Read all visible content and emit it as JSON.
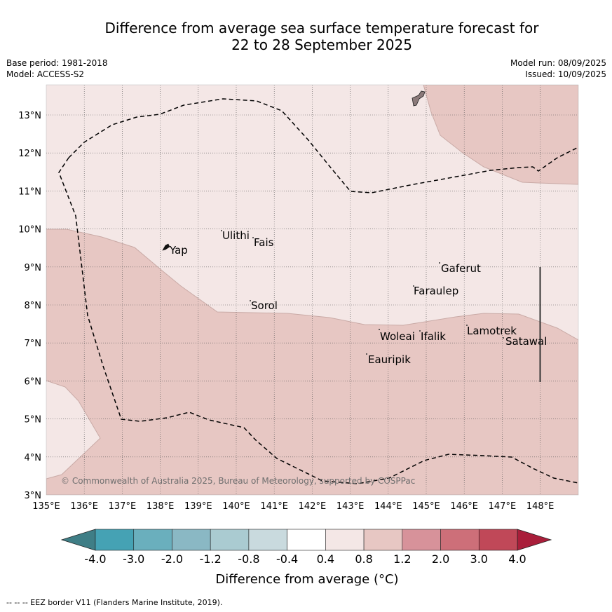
{
  "header": {
    "title_line1": "Difference from average sea surface temperature forecast for",
    "title_line2": "22 to 28 September 2025",
    "base_period": "Base period: 1981-2018",
    "model": "Model: ACCESS-S2",
    "model_run": "Model run: 08/09/2025",
    "issued": "Issued: 10/09/2025"
  },
  "map": {
    "lat_labels": [
      "3°N",
      "4°N",
      "5°N",
      "6°N",
      "7°N",
      "8°N",
      "9°N",
      "10°N",
      "11°N",
      "12°N",
      "13°N"
    ],
    "lon_labels": [
      "135°E",
      "136°E",
      "137°E",
      "138°E",
      "139°E",
      "140°E",
      "141°E",
      "142°E",
      "143°E",
      "144°E",
      "145°E",
      "146°E",
      "147°E",
      "148°E"
    ],
    "places": [
      "Yap",
      "Ulithi",
      "Fais",
      "Sorol",
      "Gaferut",
      "Faraulep",
      "Woleai",
      "Ifalik",
      "Lamotrek",
      "Satawal",
      "Eauripik"
    ],
    "copyright": "© Commonwealth of Australia 2025, Bureau of Meteorology, supported by COSPPac",
    "category_colors": {
      "0.4_to_0.8": "#f4e7e6",
      "0.8_to_1.2": "#e7c7c3"
    }
  },
  "colorbar": {
    "ticks": [
      "-4.0",
      "-3.0",
      "-2.0",
      "-1.2",
      "-0.8",
      "-0.4",
      "0.4",
      "0.8",
      "1.2",
      "2.0",
      "3.0",
      "4.0"
    ],
    "colors": [
      "#45a2b4",
      "#6aafbd",
      "#8ab8c4",
      "#aacbd1",
      "#c9dade",
      "#ffffff",
      "#f4e7e6",
      "#e7c7c3",
      "#d7929a",
      "#cd6f79",
      "#c04858"
    ],
    "under_color": "#3f7e86",
    "over_color": "#a91e3a",
    "label": "Difference from average (°C)"
  },
  "footer": {
    "legend": "--  --  -- EEZ border V11 (Flanders Marine Institute, 2019)."
  }
}
